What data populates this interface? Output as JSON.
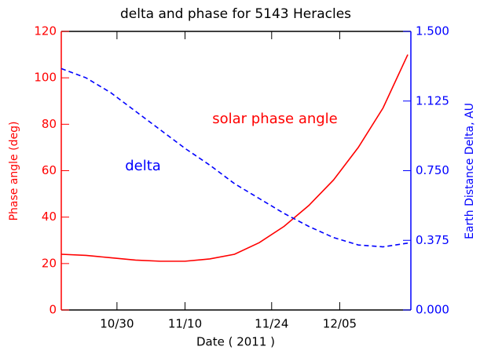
{
  "chart_data": {
    "type": "line",
    "title": "delta and phase for 5143 Heracles",
    "xlabel": "Date ( 2011 )",
    "ylabel": "Phase angle (deg)",
    "y2label": "Earth Distance Delta, AU",
    "x": [
      294,
      298,
      302,
      306,
      310,
      314,
      318,
      322,
      326,
      330,
      334,
      338,
      342,
      346,
      350
    ],
    "series": [
      {
        "name": "solar phase angle",
        "color": "#ff0000",
        "axis": "y",
        "dash": false,
        "values": [
          24,
          23.5,
          22.5,
          21.5,
          21,
          21,
          22,
          24,
          29,
          36,
          45,
          56,
          70,
          87,
          110
        ]
      },
      {
        "name": "delta",
        "color": "#0000ff",
        "axis": "y2",
        "dash": true,
        "values": [
          1.3,
          1.25,
          1.17,
          1.07,
          0.97,
          0.87,
          0.78,
          0.68,
          0.6,
          0.52,
          0.45,
          0.39,
          0.35,
          0.34,
          0.36
        ]
      }
    ],
    "xlim": [
      294,
      350.5
    ],
    "xticks": [
      {
        "value": 303,
        "label": "10/30"
      },
      {
        "value": 314,
        "label": "11/10"
      },
      {
        "value": 328,
        "label": "11/24"
      },
      {
        "value": 339,
        "label": "12/05"
      }
    ],
    "ylim": [
      0,
      120
    ],
    "yticks": [
      0,
      20,
      40,
      60,
      80,
      100,
      120
    ],
    "y2lim": [
      0,
      1.5
    ],
    "y2ticks": [
      {
        "value": 0,
        "label": "0.000"
      },
      {
        "value": 0.375,
        "label": "0.375"
      },
      {
        "value": 0.75,
        "label": "0.750"
      },
      {
        "value": 1.125,
        "label": "1.125"
      },
      {
        "value": 1.5,
        "label": "1.500"
      }
    ]
  }
}
